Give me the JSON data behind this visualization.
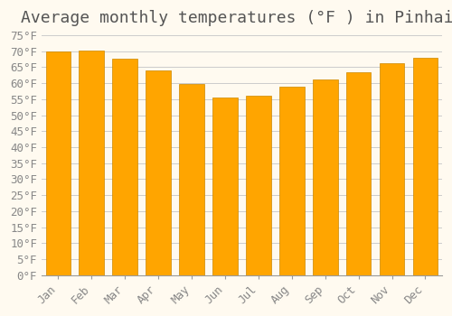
{
  "title": "Average monthly temperatures (°F ) in Pinhais",
  "months": [
    "Jan",
    "Feb",
    "Mar",
    "Apr",
    "May",
    "Jun",
    "Jul",
    "Aug",
    "Sep",
    "Oct",
    "Nov",
    "Dec"
  ],
  "values": [
    70.0,
    70.2,
    67.8,
    63.9,
    59.9,
    55.4,
    56.1,
    58.8,
    61.2,
    63.5,
    66.2,
    68.0
  ],
  "bar_color": "#FFA500",
  "bar_edge_color": "#CC8800",
  "background_color": "#FFFAF0",
  "grid_color": "#CCCCCC",
  "ylim": [
    0,
    75
  ],
  "ytick_step": 5,
  "title_fontsize": 13,
  "tick_fontsize": 10,
  "label_color": "#888888"
}
